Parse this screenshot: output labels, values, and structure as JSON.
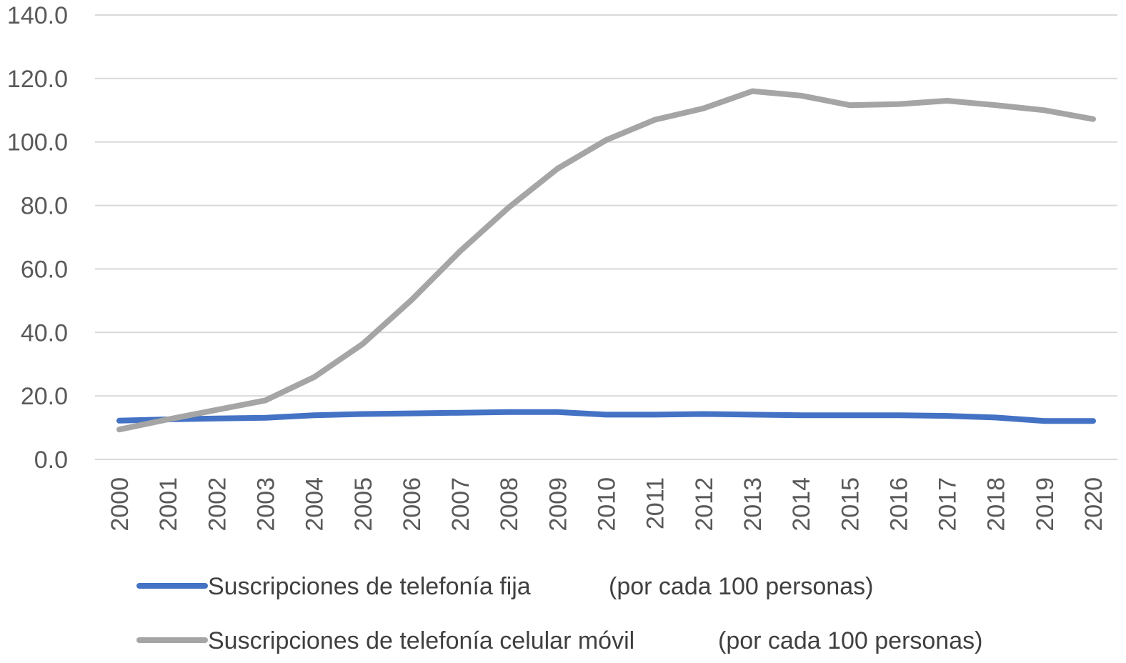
{
  "chart_data": {
    "type": "line",
    "title": "",
    "xlabel": "",
    "ylabel": "",
    "ylim": [
      0,
      140
    ],
    "y_ticks": [
      "0.0",
      "20.0",
      "40.0",
      "60.0",
      "80.0",
      "100.0",
      "120.0",
      "140.0"
    ],
    "grid": true,
    "legend_position": "bottom",
    "categories": [
      "2000",
      "2001",
      "2002",
      "2003",
      "2004",
      "2005",
      "2006",
      "2007",
      "2008",
      "2009",
      "2010",
      "2011",
      "2012",
      "2013",
      "2014",
      "2015",
      "2016",
      "2017",
      "2018",
      "2019",
      "2020"
    ],
    "series": [
      {
        "name": "Suscripciones de telefonía fija",
        "name_suffix": "(por cada 100 personas)",
        "color": "#4472c4",
        "values": [
          12.2,
          12.6,
          12.9,
          13.1,
          13.9,
          14.3,
          14.5,
          14.7,
          14.9,
          14.9,
          14.1,
          14.1,
          14.3,
          14.1,
          13.9,
          13.9,
          13.9,
          13.7,
          13.2,
          12.1,
          12.1
        ]
      },
      {
        "name": "Suscripciones de telefonía celular móvil",
        "name_suffix": "(por cada 100 personas)",
        "color": "#a5a5a5",
        "values": [
          9.4,
          12.6,
          15.6,
          18.6,
          25.9,
          36.4,
          50.2,
          65.6,
          79.4,
          91.6,
          100.6,
          107.0,
          110.6,
          116.0,
          114.6,
          111.6,
          111.9,
          113.0,
          111.6,
          110.0,
          107.2
        ]
      }
    ]
  }
}
